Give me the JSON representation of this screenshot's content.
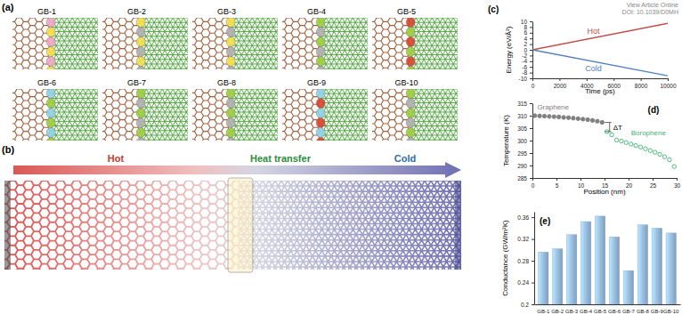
{
  "header": {
    "link": "View Article Online",
    "doi": "DOI: 10.1039/D0MH"
  },
  "panel_a": {
    "label": "(a)",
    "structures": [
      "GB-1",
      "GB-2",
      "GB-3",
      "GB-4",
      "GB-5",
      "GB-6",
      "GB-7",
      "GB-8",
      "GB-9",
      "GB-10"
    ]
  },
  "panel_b": {
    "label": "(b)",
    "hot": "Hot",
    "transfer": "Heat transfer",
    "cold": "Cold"
  },
  "chart_data": [
    {
      "type": "line",
      "title": "(c)",
      "x": [
        0,
        10000
      ],
      "series": [
        {
          "name": "Hot",
          "color": "#c0504d",
          "values": [
            0,
            9.3
          ]
        },
        {
          "name": "Cold",
          "color": "#4f81bd",
          "values": [
            0,
            -9.1
          ]
        }
      ],
      "xlabel": "Time (ps)",
      "ylabel": "Energy (eV/Å²)",
      "xlim": [
        0,
        10000
      ],
      "xticks": [
        0,
        2000,
        4000,
        6000,
        8000,
        10000
      ],
      "ylim": [
        -10,
        10
      ],
      "yticks": [
        -10,
        -8,
        -6,
        -4,
        -2,
        0,
        2,
        4,
        6,
        8,
        10
      ]
    },
    {
      "type": "scatter",
      "title": "(d)",
      "series": [
        {
          "name": "Graphene",
          "color": "#808080",
          "marker": "circle",
          "x": [
            0.5,
            1.5,
            2.5,
            3.5,
            4.5,
            5.5,
            6.5,
            7.5,
            8.5,
            9.5,
            10.5,
            11.5,
            12.5,
            13.5,
            14.5
          ],
          "values": [
            310.0,
            309.9,
            309.8,
            309.7,
            309.6,
            309.5,
            309.3,
            309.2,
            309.0,
            308.8,
            308.6,
            308.4,
            308.1,
            307.8,
            307.3
          ]
        },
        {
          "name": "Borophene",
          "color": "#3cb371",
          "marker": "open-circle",
          "x": [
            15.5,
            16.5,
            17.5,
            18.5,
            19.5,
            20.5,
            21.5,
            22.5,
            23.5,
            24.5,
            25.5,
            26.5,
            27.5,
            28.5,
            29.5
          ],
          "values": [
            303.6,
            302.3,
            300.2,
            299.8,
            299.2,
            298.6,
            298.0,
            297.4,
            296.7,
            296.0,
            295.3,
            294.5,
            293.5,
            292.3,
            289.6
          ]
        }
      ],
      "xlabel": "Position (nm)",
      "ylabel": "Temperature (K)",
      "xlim": [
        0,
        30
      ],
      "xticks": [
        0,
        5,
        10,
        15,
        20,
        25,
        30
      ],
      "ylim": [
        285,
        315
      ],
      "yticks": [
        285,
        290,
        295,
        300,
        305,
        310,
        315
      ],
      "annotations": [
        "ΔT"
      ]
    },
    {
      "type": "bar",
      "title": "(e)",
      "categories": [
        "GB-1",
        "GB-2",
        "GB-3",
        "GB-4",
        "GB-5",
        "GB-6",
        "GB-7",
        "GB-8",
        "GB-9",
        "GB-10"
      ],
      "values": [
        0.296,
        0.302,
        0.328,
        0.352,
        0.362,
        0.324,
        0.262,
        0.346,
        0.34,
        0.331
      ],
      "color": "#9dc3e6",
      "ylabel": "Conductance (GW/m²K)",
      "ylim": [
        0.2,
        0.37
      ],
      "yticks": [
        0.2,
        0.24,
        0.28,
        0.32,
        0.36
      ]
    }
  ]
}
